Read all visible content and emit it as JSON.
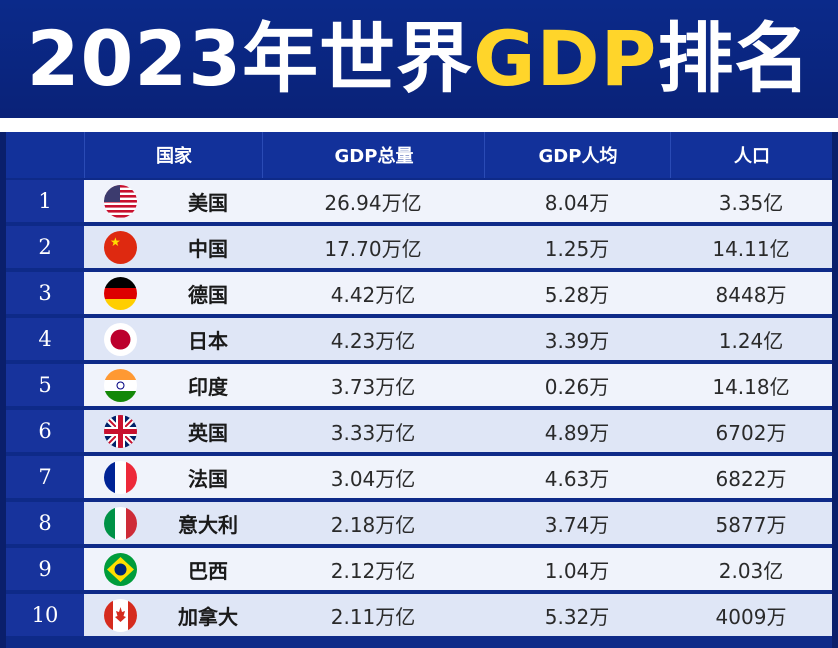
{
  "title": {
    "prefix": "2023年世界",
    "highlight": "GDP",
    "suffix": "排名"
  },
  "headers": {
    "country": "国家",
    "gdp_total": "GDP总量",
    "gdp_per_capita": "GDP人均",
    "population": "人口"
  },
  "rows": [
    {
      "rank": "1",
      "flag": "usa-flag-icon",
      "country": "美国",
      "gdp_total": "26.94万亿",
      "gdp_per_capita": "8.04万",
      "population": "3.35亿"
    },
    {
      "rank": "2",
      "flag": "china-flag-icon",
      "country": "中国",
      "gdp_total": "17.70万亿",
      "gdp_per_capita": "1.25万",
      "population": "14.11亿"
    },
    {
      "rank": "3",
      "flag": "germany-flag-icon",
      "country": "德国",
      "gdp_total": "4.42万亿",
      "gdp_per_capita": "5.28万",
      "population": "8448万"
    },
    {
      "rank": "4",
      "flag": "japan-flag-icon",
      "country": "日本",
      "gdp_total": "4.23万亿",
      "gdp_per_capita": "3.39万",
      "population": "1.24亿"
    },
    {
      "rank": "5",
      "flag": "india-flag-icon",
      "country": "印度",
      "gdp_total": "3.73万亿",
      "gdp_per_capita": "0.26万",
      "population": "14.18亿"
    },
    {
      "rank": "6",
      "flag": "uk-flag-icon",
      "country": "英国",
      "gdp_total": "3.33万亿",
      "gdp_per_capita": "4.89万",
      "population": "6702万"
    },
    {
      "rank": "7",
      "flag": "france-flag-icon",
      "country": "法国",
      "gdp_total": "3.04万亿",
      "gdp_per_capita": "4.63万",
      "population": "6822万"
    },
    {
      "rank": "8",
      "flag": "italy-flag-icon",
      "country": "意大利",
      "gdp_total": "2.18万亿",
      "gdp_per_capita": "3.74万",
      "population": "5877万"
    },
    {
      "rank": "9",
      "flag": "brazil-flag-icon",
      "country": "巴西",
      "gdp_total": "2.12万亿",
      "gdp_per_capita": "1.04万",
      "population": "2.03亿"
    },
    {
      "rank": "10",
      "flag": "canada-flag-icon",
      "country": "加拿大",
      "gdp_total": "2.11万亿",
      "gdp_per_capita": "5.32万",
      "population": "4009万"
    }
  ],
  "colors": {
    "banner": "#0b2a8a",
    "highlight": "#ffd52a",
    "row_light": "#f0f3fb",
    "row_dark": "#dfe6f6",
    "rank_bg": "#17339c"
  }
}
